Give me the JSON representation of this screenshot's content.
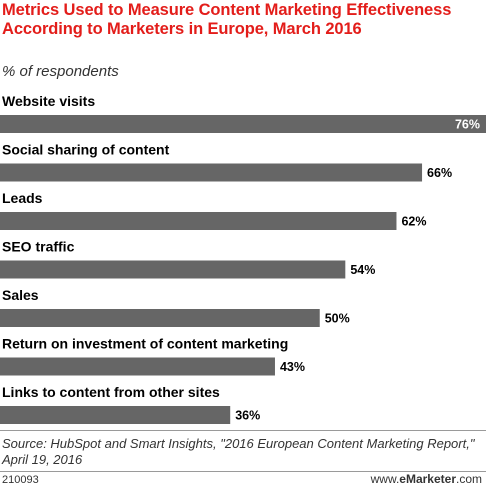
{
  "title": "Metrics Used to Measure Content Marketing Effectiveness According to Marketers in Europe, March 2016",
  "subtitle": "% of respondents",
  "chart_data": {
    "type": "bar",
    "orientation": "horizontal",
    "categories": [
      "Website visits",
      "Social sharing of content",
      "Leads",
      "SEO traffic",
      "Sales",
      "Return on investment of content marketing",
      "Links to content from other sites"
    ],
    "values": [
      76,
      66,
      62,
      54,
      50,
      43,
      36
    ],
    "value_labels": [
      "76%",
      "66%",
      "62%",
      "54%",
      "50%",
      "43%",
      "36%"
    ],
    "unit": "%",
    "xlim": [
      0,
      76
    ],
    "grid": false,
    "colors": {
      "bar": "#666666",
      "label_inside": "#ffffff",
      "label_outside": "#000000"
    }
  },
  "source": "Source: HubSpot and Smart Insights, \"2016 European Content Marketing Report,\" April 19, 2016",
  "footer": {
    "id": "210093",
    "brand_prefix": "www.",
    "brand_name": "eMarketer",
    "brand_suffix": ".com"
  }
}
